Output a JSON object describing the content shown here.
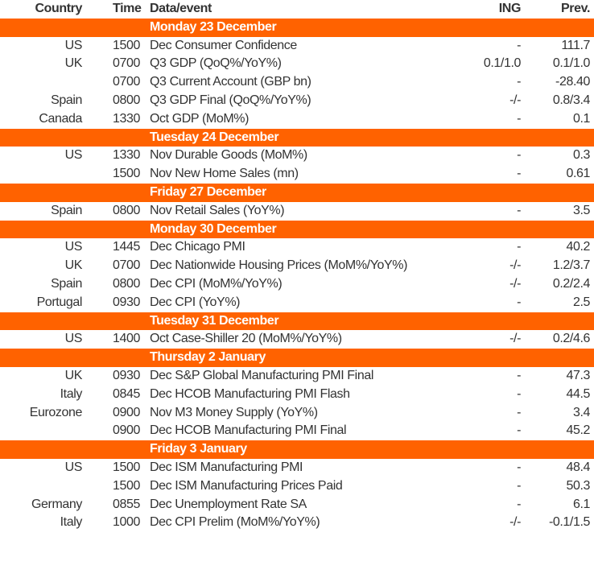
{
  "colors": {
    "band": "#FF6200",
    "text": "#333333",
    "band_text": "#FFFFFF"
  },
  "header": {
    "country": "Country",
    "time": "Time",
    "event": "Data/event",
    "ing": "ING",
    "prev": "Prev."
  },
  "sections": [
    {
      "day": "Monday 23 December",
      "rows": [
        {
          "country": "US",
          "time": "1500",
          "event": "Dec Consumer Confidence",
          "ing": "-",
          "prev": "111.7"
        },
        {
          "country": "UK",
          "time": "0700",
          "event": "Q3 GDP (QoQ%/YoY%)",
          "ing": "0.1/1.0",
          "prev": "0.1/1.0"
        },
        {
          "country": "",
          "time": "0700",
          "event": "Q3 Current Account (GBP bn)",
          "ing": "-",
          "prev": "-28.40"
        },
        {
          "country": "Spain",
          "time": "0800",
          "event": "Q3 GDP Final (QoQ%/YoY%)",
          "ing": "-/-",
          "prev": "0.8/3.4"
        },
        {
          "country": "Canada",
          "time": "1330",
          "event": "Oct GDP (MoM%)",
          "ing": "-",
          "prev": "0.1"
        }
      ]
    },
    {
      "day": "Tuesday 24 December",
      "rows": [
        {
          "country": "US",
          "time": "1330",
          "event": "Nov Durable Goods (MoM%)",
          "ing": "-",
          "prev": "0.3"
        },
        {
          "country": "",
          "time": "1500",
          "event": "Nov New Home Sales (mn)",
          "ing": "-",
          "prev": "0.61"
        }
      ]
    },
    {
      "day": "Friday 27 December",
      "rows": [
        {
          "country": "Spain",
          "time": "0800",
          "event": "Nov Retail Sales (YoY%)",
          "ing": "-",
          "prev": "3.5"
        }
      ]
    },
    {
      "day": "Monday 30 December",
      "rows": [
        {
          "country": "US",
          "time": "1445",
          "event": "Dec Chicago PMI",
          "ing": "-",
          "prev": "40.2"
        },
        {
          "country": "UK",
          "time": "0700",
          "event": "Dec Nationwide Housing Prices (MoM%/YoY%)",
          "ing": "-/-",
          "prev": "1.2/3.7"
        },
        {
          "country": "Spain",
          "time": "0800",
          "event": "Dec CPI (MoM%/YoY%)",
          "ing": "-/-",
          "prev": "0.2/2.4"
        },
        {
          "country": "Portugal",
          "time": "0930",
          "event": "Dec CPI (YoY%)",
          "ing": "-",
          "prev": "2.5"
        }
      ]
    },
    {
      "day": "Tuesday 31 December",
      "rows": [
        {
          "country": "US",
          "time": "1400",
          "event": "Oct Case-Shiller 20 (MoM%/YoY%)",
          "ing": "-/-",
          "prev": "0.2/4.6"
        }
      ]
    },
    {
      "day": "Thursday 2 January",
      "rows": [
        {
          "country": "UK",
          "time": "0930",
          "event": "Dec S&P Global Manufacturing PMI Final",
          "ing": "-",
          "prev": "47.3"
        },
        {
          "country": "Italy",
          "time": "0845",
          "event": "Dec HCOB Manufacturing PMI Flash",
          "ing": "-",
          "prev": "44.5"
        },
        {
          "country": "Eurozone",
          "time": "0900",
          "event": "Nov M3 Money Supply (YoY%)",
          "ing": "-",
          "prev": "3.4"
        },
        {
          "country": "",
          "time": "0900",
          "event": "Dec HCOB Manufacturing PMI Final",
          "ing": "-",
          "prev": "45.2"
        }
      ]
    },
    {
      "day": "Friday 3 January",
      "rows": [
        {
          "country": "US",
          "time": "1500",
          "event": "Dec ISM Manufacturing PMI",
          "ing": "-",
          "prev": "48.4"
        },
        {
          "country": "",
          "time": "1500",
          "event": "Dec ISM Manufacturing Prices Paid",
          "ing": "-",
          "prev": "50.3"
        },
        {
          "country": "Germany",
          "time": "0855",
          "event": "Dec Unemployment Rate SA",
          "ing": "-",
          "prev": "6.1"
        },
        {
          "country": "Italy",
          "time": "1000",
          "event": "Dec CPI Prelim (MoM%/YoY%)",
          "ing": "-/-",
          "prev": "-0.1/1.5"
        }
      ]
    }
  ]
}
